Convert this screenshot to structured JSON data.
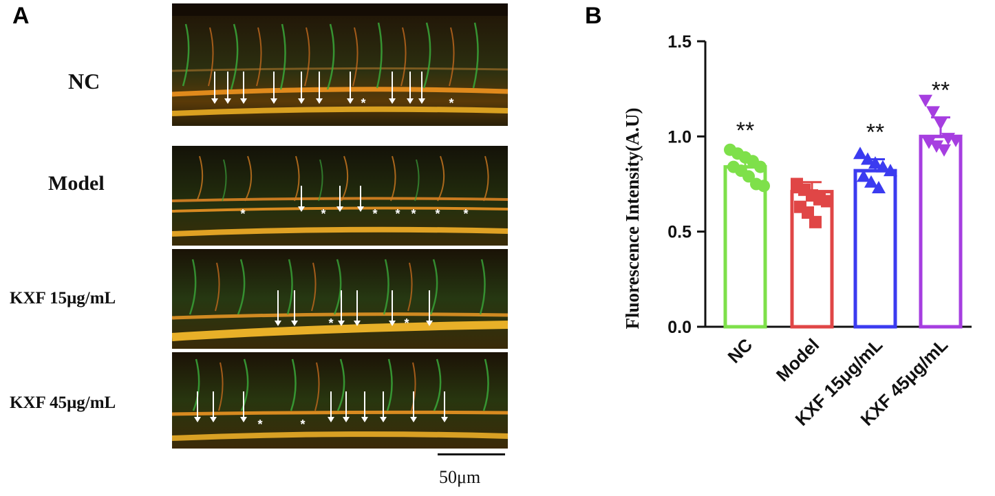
{
  "panel_a": {
    "letter": "A",
    "rows": [
      {
        "label": "NC",
        "arrows": [
          312,
          331,
          354,
          398,
          438,
          464,
          509,
          570,
          596,
          613
        ],
        "stars": [
          528,
          656
        ],
        "arrow_top": 104,
        "arrow_bottom": 151,
        "star_y": 150
      },
      {
        "label": "Model",
        "arrows": [
          438,
          494,
          524
        ],
        "stars": [
          353,
          470,
          545,
          578,
          601,
          636,
          677
        ],
        "arrow_top": 270,
        "arrow_bottom": 308,
        "star_y": 311
      },
      {
        "label": "KXF 15μg/mL",
        "arrows": [
          404,
          428,
          496,
          519,
          570,
          624
        ],
        "stars": [
          481,
          591
        ],
        "arrow_top": 422,
        "arrow_bottom": 474,
        "star_y": 470
      },
      {
        "label": "KXF 45μg/mL",
        "arrows": [
          287,
          310,
          354,
          481,
          503,
          530,
          557,
          601,
          646
        ],
        "stars": [
          378,
          440
        ],
        "arrow_top": 569,
        "arrow_bottom": 614,
        "star_y": 617
      }
    ],
    "scale_label": "50μm"
  },
  "panel_b": {
    "letter": "B"
  },
  "chart_data": {
    "type": "bar",
    "ylabel": "Fluorescence Intensity(A.U)",
    "ylim": [
      0,
      1.5
    ],
    "yticks": [
      0.0,
      0.5,
      1.0,
      1.5
    ],
    "ytick_labels": [
      "0.0",
      "0.5",
      "1.0",
      "1.5"
    ],
    "categories": [
      "NC",
      "Model",
      "KXF 15μg/mL",
      "KXF 45μg/mL"
    ],
    "values": [
      0.84,
      0.71,
      0.82,
      1.0
    ],
    "errors": [
      0.05,
      0.05,
      0.06,
      0.1
    ],
    "significance": [
      "**",
      "",
      "**",
      "**"
    ],
    "colors": [
      "#7ee04a",
      "#e04646",
      "#3b3bf0",
      "#a63ee0"
    ],
    "markers": [
      "circle",
      "square",
      "triangle-up",
      "triangle-down"
    ],
    "points": [
      [
        0.93,
        0.91,
        0.89,
        0.87,
        0.84,
        0.84,
        0.82,
        0.79,
        0.75,
        0.74
      ],
      [
        0.75,
        0.72,
        0.69,
        0.67,
        0.66,
        0.63,
        0.6,
        0.55
      ],
      [
        0.91,
        0.88,
        0.86,
        0.84,
        0.82,
        0.79,
        0.76,
        0.73
      ],
      [
        1.19,
        1.13,
        1.07,
        0.99,
        0.98,
        0.97,
        0.95,
        0.93
      ]
    ]
  }
}
